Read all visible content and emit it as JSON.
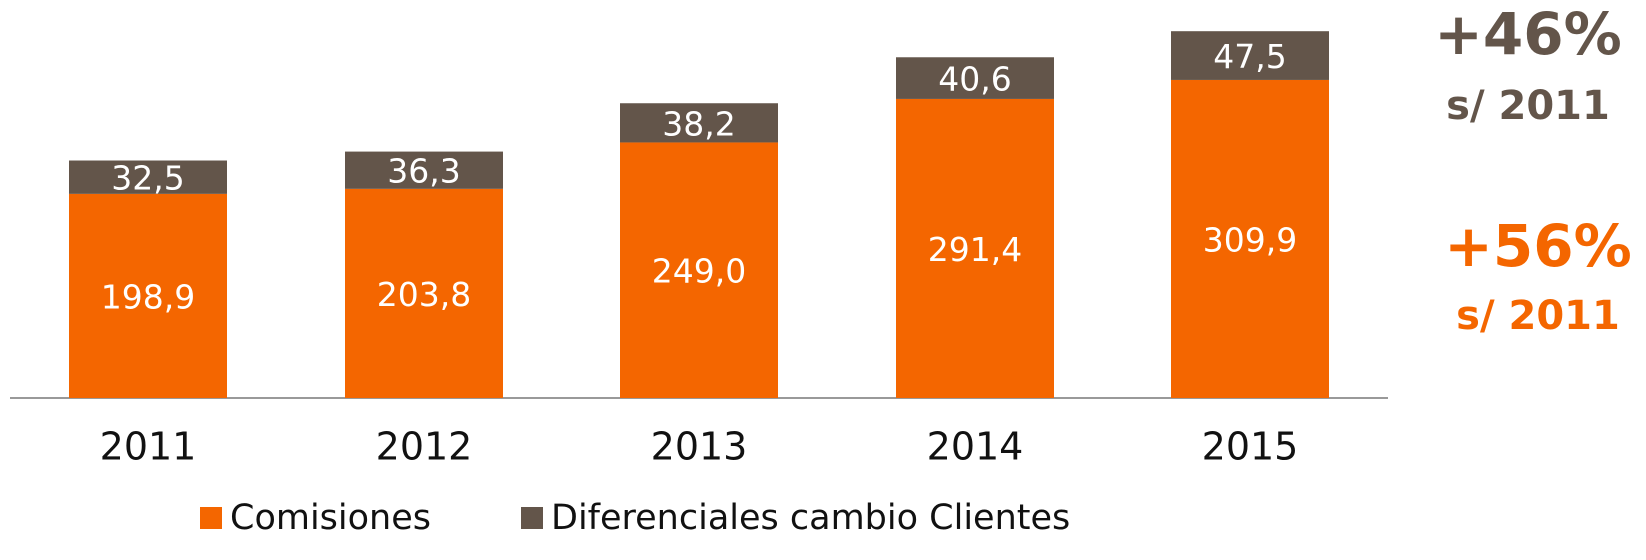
{
  "chart_data": {
    "type": "stacked_bar",
    "categories": [
      "2011",
      "2012",
      "2013",
      "2014",
      "2015"
    ],
    "series": [
      {
        "name": "Comisiones",
        "color": "#f46600",
        "values": [
          198.9,
          203.8,
          249.0,
          291.4,
          309.9
        ],
        "value_labels": [
          "198,9",
          "203,8",
          "249,0",
          "291,4",
          "309,9"
        ]
      },
      {
        "name": "Diferenciales cambio Clientes",
        "color": "#63554a",
        "values": [
          32.5,
          36.3,
          38.2,
          40.6,
          47.5
        ],
        "value_labels": [
          "32,5",
          "36,3",
          "38,2",
          "40,6",
          "47,5"
        ]
      }
    ],
    "ylim": [
      0,
      380
    ],
    "annotations": [
      {
        "text": "+46%",
        "color": "#63554a"
      },
      {
        "text": "s/ 2011",
        "color": "#63554a"
      },
      {
        "text": "+56%",
        "color": "#f46600"
      },
      {
        "text": "s/ 2011",
        "color": "#f46600"
      }
    ]
  }
}
